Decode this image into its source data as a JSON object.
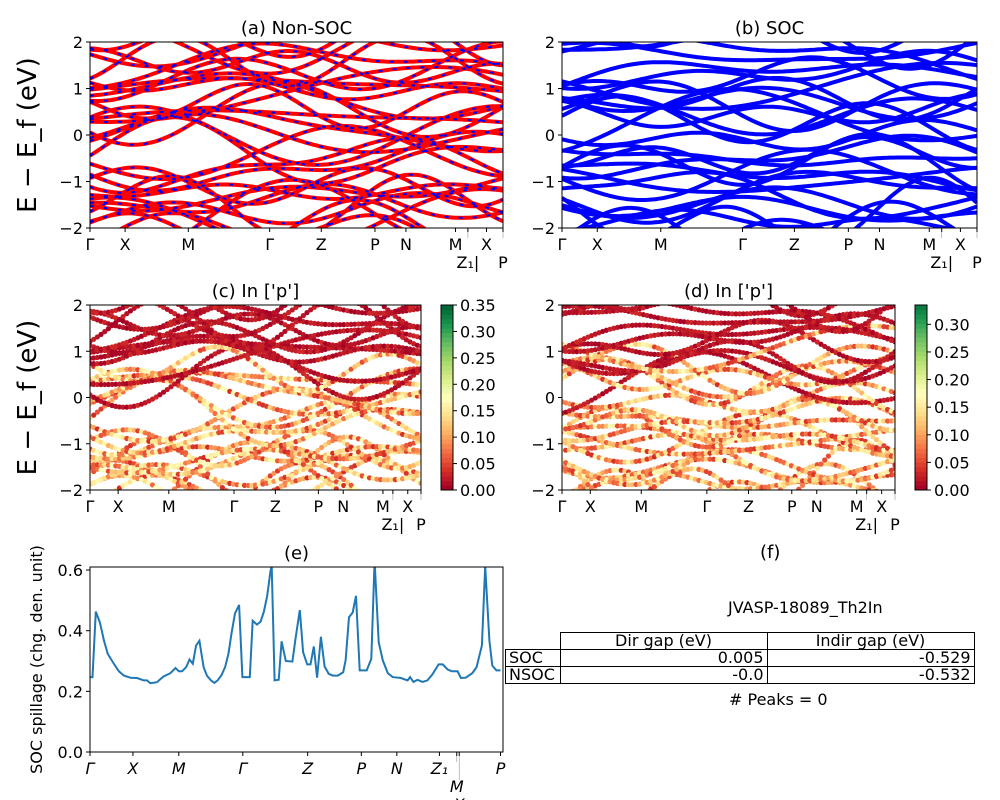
{
  "chart_data": [
    {
      "panel": "a",
      "type": "line",
      "title": "(a) Non-SOC",
      "ylabel": "E − E_f (eV)",
      "ylim": [
        -2,
        2
      ],
      "yticks": [
        "−2",
        "−1",
        "0",
        "1",
        "2"
      ],
      "xticks": [
        "Γ",
        "X",
        "M",
        "Γ",
        "Z",
        "P",
        "N",
        "M",
        "Z₁|",
        "X",
        "P"
      ],
      "colors": [
        "#ff0000",
        "#0000ff"
      ],
      "note_series": [
        "Non-SOC bands (red solid)",
        "overlaid blue dashed bands"
      ]
    },
    {
      "panel": "b",
      "type": "line",
      "title": "(b) SOC",
      "ylim": [
        -2,
        2
      ],
      "yticks": [
        "−2",
        "−1",
        "0",
        "1",
        "2"
      ],
      "xticks": [
        "Γ",
        "X",
        "M",
        "Γ",
        "Z",
        "P",
        "N",
        "M",
        "Z₁|",
        "X",
        "P"
      ],
      "colors": [
        "#0000ff"
      ]
    },
    {
      "panel": "c",
      "type": "scatter",
      "title": "(c)  In ['p']",
      "ylabel": "E − E_f (eV)",
      "ylim": [
        -2,
        2
      ],
      "yticks": [
        "−2",
        "−1",
        "0",
        "1",
        "2"
      ],
      "xticks": [
        "Γ",
        "X",
        "M",
        "Γ",
        "Z",
        "P",
        "N",
        "M",
        "Z₁|",
        "X",
        "P"
      ],
      "colormap": "RdYlGn",
      "colorbar_range": [
        0,
        0.35
      ],
      "colorbar_ticks": [
        "0.00",
        "0.05",
        "0.10",
        "0.15",
        "0.20",
        "0.25",
        "0.30",
        "0.35"
      ]
    },
    {
      "panel": "d",
      "type": "scatter",
      "title": "(d) In ['p']",
      "ylim": [
        -2,
        2
      ],
      "yticks": [
        "−2",
        "−1",
        "0",
        "1",
        "2"
      ],
      "xticks": [
        "Γ",
        "X",
        "M",
        "Γ",
        "Z",
        "P",
        "N",
        "M",
        "Z₁|",
        "X",
        "P"
      ],
      "colormap": "RdYlGn",
      "colorbar_range": [
        0,
        0.335
      ],
      "colorbar_ticks": [
        "0.00",
        "0.05",
        "0.10",
        "0.15",
        "0.20",
        "0.25",
        "0.30"
      ]
    },
    {
      "panel": "e",
      "type": "line",
      "title": "(e)",
      "ylabel": "SOC spillage (chg. den. unit)",
      "ylim": [
        0,
        0.61
      ],
      "yticks": [
        "0.0",
        "0.2",
        "0.4",
        "0.6"
      ],
      "color": "#1f77b4",
      "xticks": [
        {
          "label": "Γ",
          "x": 0
        },
        {
          "label": "X",
          "x": 10.4
        },
        {
          "label": "M",
          "x": 21.5
        },
        {
          "label": "Γ",
          "x": 37.0
        },
        {
          "label": "Z",
          "x": 52.7
        },
        {
          "label": "P",
          "x": 65.7
        },
        {
          "label": "N",
          "x": 74.3
        },
        {
          "label": "Z₁",
          "x": 84.6
        },
        {
          "label": "M",
          "x": 88.8
        },
        {
          "label": "X",
          "x": 89.4
        },
        {
          "label": "P",
          "x": 99.4
        }
      ],
      "x": [
        0,
        0.6,
        1.4,
        2.4,
        3.4,
        4.3,
        5.8,
        7.0,
        8.2,
        9.8,
        11.4,
        13.0,
        13.8,
        14.6,
        16.2,
        17.8,
        19.5,
        20.7,
        21.5,
        22.3,
        23.3,
        24.1,
        24.9,
        25.7,
        26.5,
        27.5,
        28.3,
        29.3,
        30.1,
        30.9,
        31.9,
        32.7,
        33.5,
        34.3,
        35.1,
        36.1,
        36.9,
        38.7,
        39.4,
        40.4,
        41.3,
        42.1,
        42.9,
        43.7,
        44.0,
        44.7,
        45.7,
        46.4,
        47.4,
        49.0,
        49.8,
        50.8,
        51.6,
        52.6,
        53.4,
        54.2,
        55.0,
        55.9,
        56.8,
        57.8,
        58.8,
        60.0,
        61.3,
        61.9,
        62.7,
        63.6,
        64.4,
        65.3,
        67.0,
        68.1,
        68.9,
        69.9,
        70.9,
        72.1,
        73.3,
        75.3,
        76.9,
        77.5,
        78.3,
        79.3,
        80.5,
        81.7,
        82.9,
        84.4,
        85.4,
        86.6,
        87.6,
        89.0,
        89.8,
        91.0,
        92.6,
        93.6,
        94.9,
        95.7,
        96.7,
        97.4,
        98.4,
        99.4
      ],
      "y": [
        0.247,
        0.247,
        0.463,
        0.427,
        0.367,
        0.323,
        0.29,
        0.266,
        0.252,
        0.245,
        0.244,
        0.236,
        0.236,
        0.227,
        0.23,
        0.249,
        0.26,
        0.277,
        0.266,
        0.266,
        0.28,
        0.305,
        0.291,
        0.351,
        0.367,
        0.28,
        0.252,
        0.236,
        0.228,
        0.236,
        0.255,
        0.28,
        0.323,
        0.395,
        0.457,
        0.485,
        0.247,
        0.247,
        0.433,
        0.42,
        0.43,
        0.463,
        0.515,
        0.597,
        0.613,
        0.236,
        0.238,
        0.365,
        0.3,
        0.298,
        0.378,
        0.468,
        0.329,
        0.289,
        0.289,
        0.348,
        0.245,
        0.38,
        0.282,
        0.258,
        0.252,
        0.252,
        0.263,
        0.302,
        0.444,
        0.46,
        0.515,
        0.269,
        0.269,
        0.307,
        0.63,
        0.362,
        0.302,
        0.26,
        0.247,
        0.244,
        0.236,
        0.247,
        0.231,
        0.238,
        0.231,
        0.236,
        0.256,
        0.289,
        0.289,
        0.272,
        0.266,
        0.266,
        0.244,
        0.245,
        0.26,
        0.28,
        0.351,
        0.613,
        0.367,
        0.285,
        0.269,
        0.269
      ]
    },
    {
      "panel": "f",
      "type": "table",
      "title": "(f)",
      "material": "JVASP-18089_Th2In",
      "columns": [
        "",
        "Dir gap (eV)",
        "Indir gap (eV)"
      ],
      "rows": [
        [
          "SOC",
          "0.005",
          "-0.529"
        ],
        [
          "NSOC",
          "-0.0",
          "-0.532"
        ]
      ],
      "footer": "# Peaks = 0"
    }
  ]
}
